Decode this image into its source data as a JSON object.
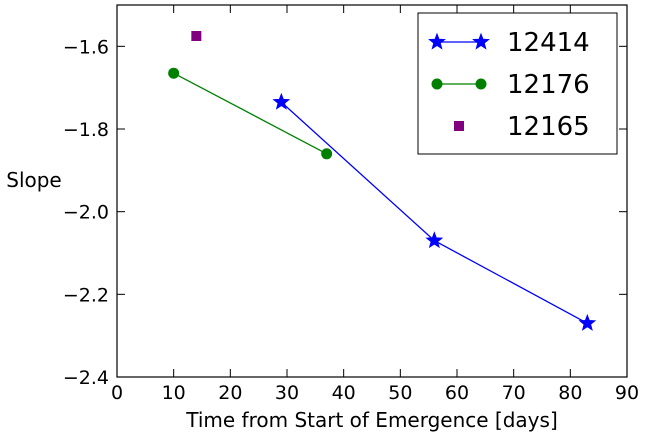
{
  "chart_data": {
    "type": "line",
    "title": "",
    "xlabel": "Time from Start of Emergence [days]",
    "ylabel": "Slope",
    "xlim": [
      0,
      90
    ],
    "ylim": [
      -2.4,
      -1.5
    ],
    "xticks": [
      0,
      10,
      20,
      30,
      40,
      50,
      60,
      70,
      80,
      90
    ],
    "yticks": [
      -2.4,
      -2.2,
      -2.0,
      -1.8,
      -1.6
    ],
    "ytick_labels": [
      "−2.4",
      "−2.2",
      "−2.0",
      "−1.8",
      "−1.6"
    ],
    "grid": false,
    "legend_position": "top-right",
    "series": [
      {
        "name": "12414",
        "color": "#0000ff",
        "marker": "star",
        "line": true,
        "x": [
          29,
          56,
          83
        ],
        "y": [
          -1.735,
          -2.07,
          -2.27
        ]
      },
      {
        "name": "12176",
        "color": "#008000",
        "marker": "circle",
        "line": true,
        "x": [
          10,
          37
        ],
        "y": [
          -1.665,
          -1.86
        ]
      },
      {
        "name": "12165",
        "color": "#800080",
        "marker": "square",
        "line": false,
        "x": [
          14
        ],
        "y": [
          -1.575
        ]
      }
    ]
  }
}
